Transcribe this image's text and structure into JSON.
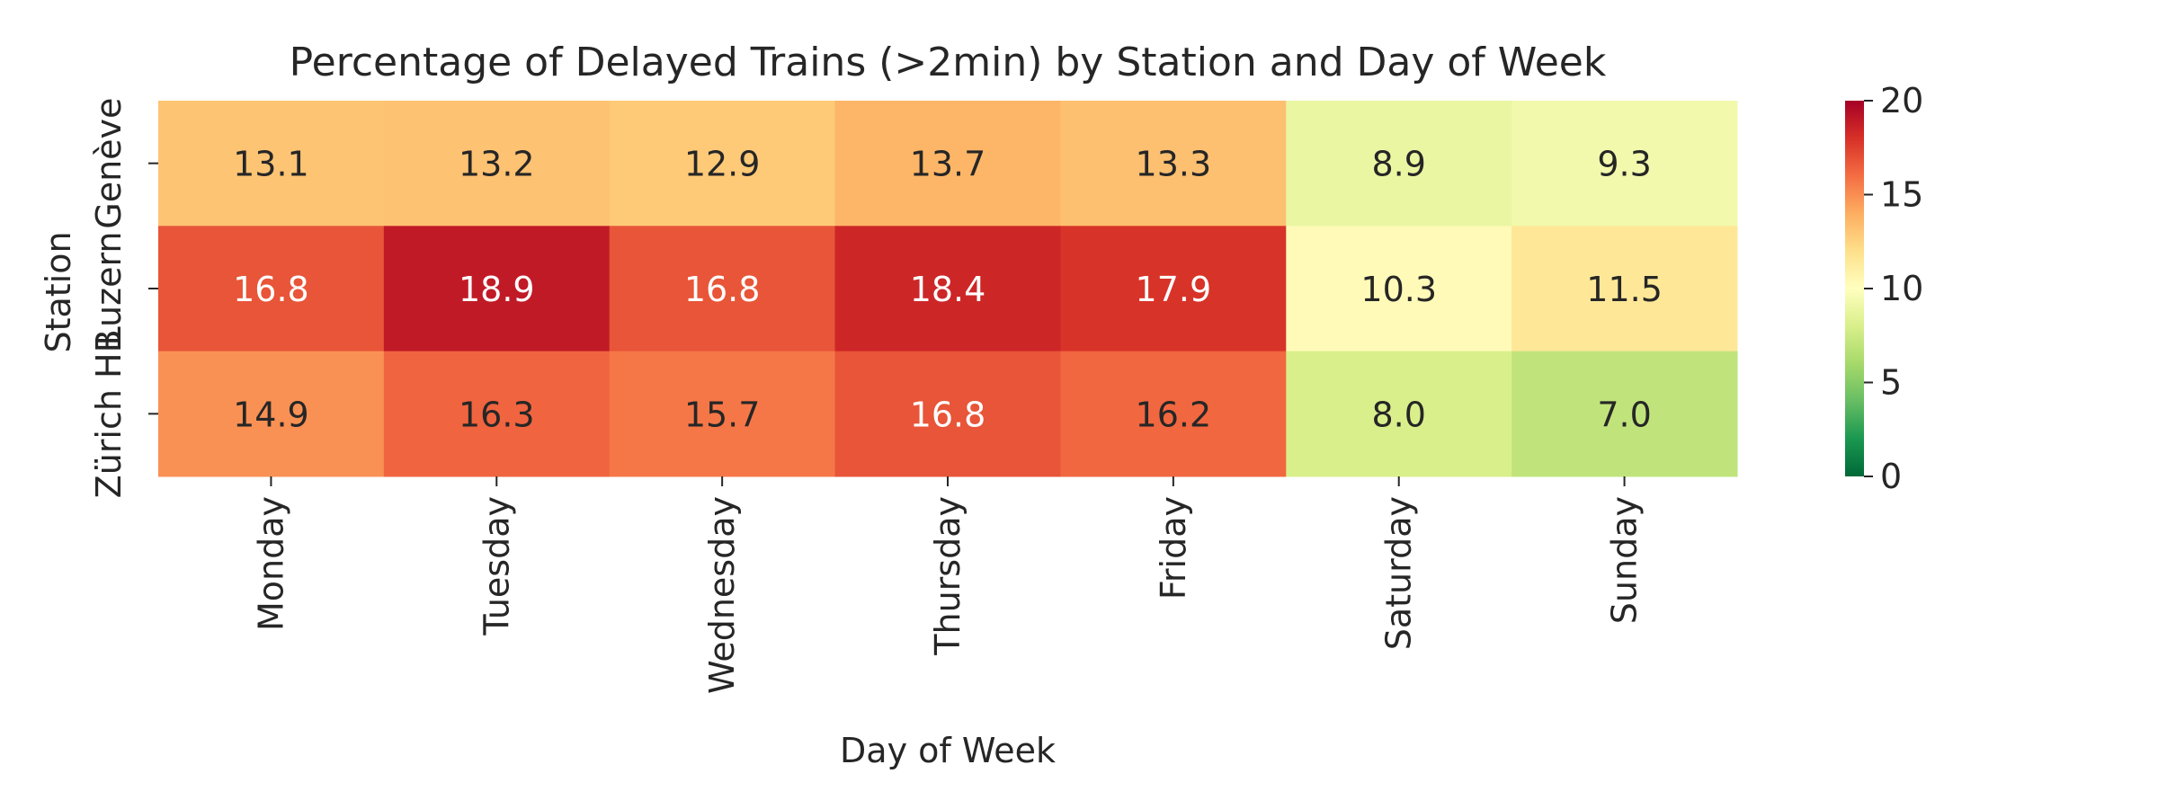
{
  "chart_data": {
    "type": "heatmap",
    "title": "Percentage of Delayed Trains (>2min) by Station and Day of Week",
    "xlabel": "Day of Week",
    "ylabel": "Station",
    "x_categories": [
      "Monday",
      "Tuesday",
      "Wednesday",
      "Thursday",
      "Friday",
      "Saturday",
      "Sunday"
    ],
    "y_categories": [
      "Genève",
      "Luzern",
      "Zürich HB"
    ],
    "values": [
      [
        13.1,
        13.2,
        12.9,
        13.7,
        13.3,
        8.9,
        9.3
      ],
      [
        16.8,
        18.9,
        16.8,
        18.4,
        17.9,
        10.3,
        11.5
      ],
      [
        14.9,
        16.3,
        15.7,
        16.8,
        16.2,
        8.0,
        7.0
      ]
    ],
    "value_labels": [
      [
        "13.1",
        "13.2",
        "12.9",
        "13.7",
        "13.3",
        "8.9",
        "9.3"
      ],
      [
        "16.8",
        "18.9",
        "16.8",
        "18.4",
        "17.9",
        "10.3",
        "11.5"
      ],
      [
        "14.9",
        "16.3",
        "15.7",
        "16.8",
        "16.2",
        "8.0",
        "7.0"
      ]
    ],
    "colorbar": {
      "min": 0,
      "max": 20,
      "ticks": [
        0,
        5,
        10,
        15,
        20
      ],
      "tick_labels": [
        "0",
        "5",
        "10",
        "15",
        "20"
      ],
      "colormap": "RdYlGn_r",
      "colors": [
        "#006837",
        "#1a9850",
        "#66bd63",
        "#a6d96a",
        "#d9ef8b",
        "#ffffbf",
        "#fee08b",
        "#fdae61",
        "#f46d43",
        "#d73027",
        "#a50026"
      ]
    }
  }
}
